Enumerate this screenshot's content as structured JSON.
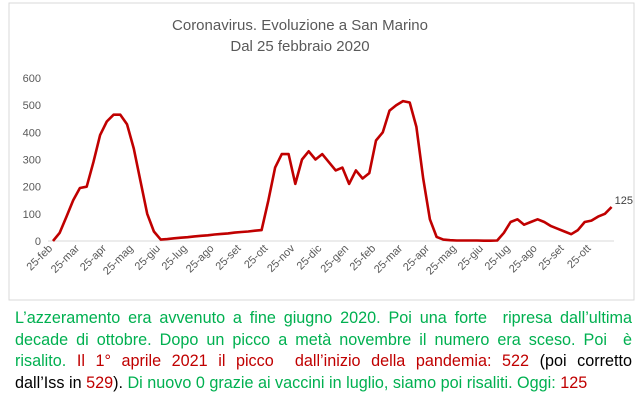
{
  "chart_data": {
    "type": "line",
    "title": "Coronavirus. Evoluzione a San Marino",
    "subtitle": "Dal 25 febbraio 2020",
    "categories": [
      "25-feb",
      null,
      null,
      null,
      "25-mar",
      null,
      null,
      null,
      "25-apr",
      null,
      null,
      null,
      "25-mag",
      null,
      null,
      null,
      "25-giu",
      null,
      null,
      null,
      "25-lug",
      null,
      null,
      null,
      "25-ago",
      null,
      null,
      null,
      "25-set",
      null,
      null,
      null,
      "25-ott",
      null,
      null,
      null,
      "25-nov",
      null,
      null,
      null,
      "25-dic",
      null,
      null,
      null,
      "25-gen",
      null,
      null,
      null,
      "25-feb",
      null,
      null,
      null,
      "25-mar",
      null,
      null,
      null,
      "25-apr",
      null,
      null,
      null,
      "25-mag",
      null,
      null,
      null,
      "25-giu",
      null,
      null,
      null,
      "25-lug",
      null,
      null,
      null,
      "25-ago",
      null,
      null,
      null,
      "25-set",
      null,
      null,
      null,
      "25-ott",
      null,
      null,
      null
    ],
    "series": [
      {
        "name": "San Marino",
        "color": "#c00000",
        "values": [
          0,
          30,
          90,
          150,
          195,
          200,
          290,
          390,
          440,
          465,
          465,
          430,
          340,
          220,
          100,
          35,
          5,
          7,
          10,
          12,
          14,
          17,
          19,
          21,
          24,
          26,
          28,
          31,
          33,
          35,
          38,
          40,
          150,
          270,
          320,
          320,
          210,
          300,
          330,
          300,
          320,
          290,
          260,
          270,
          210,
          260,
          230,
          250,
          370,
          400,
          480,
          500,
          515,
          510,
          420,
          230,
          80,
          15,
          5,
          3,
          2,
          2,
          2,
          2,
          1,
          1,
          2,
          30,
          70,
          80,
          60,
          70,
          80,
          70,
          55,
          45,
          35,
          25,
          40,
          70,
          75,
          90,
          100,
          125
        ]
      }
    ],
    "ylim": [
      0,
      600
    ],
    "yticks": [
      0,
      100,
      200,
      300,
      400,
      500,
      600
    ],
    "grid": false
  },
  "caption": {
    "lines": [
      [
        {
          "text": "L’azzeramento era avvenuto a fine giugno 2020. Poi una forte  ripresa dall’ultima",
          "color": "#00b050"
        }
      ],
      [
        {
          "text": "decade di ottobre. Dopo un picco a metà novembre il numero era sceso. Poi  è",
          "color": "#00b050"
        }
      ],
      [
        {
          "text": "risalito.",
          "color": "#00b050"
        },
        {
          "text": " Il 1° aprile 2021 il picco  dall’inizio della pandemia: 522",
          "color": "#c00000"
        },
        {
          "text": " (poi corretto",
          "color": "#000000"
        }
      ],
      [
        {
          "text": "dall’Iss in ",
          "color": "#000000"
        },
        {
          "text": "529",
          "color": "#c00000"
        },
        {
          "text": "). ",
          "color": "#000000"
        },
        {
          "text": "Di nuovo 0 grazie ai vaccini in luglio, siamo poi risaliti. Oggi: ",
          "color": "#00b050"
        },
        {
          "text": "125",
          "color": "#c00000"
        }
      ]
    ]
  }
}
